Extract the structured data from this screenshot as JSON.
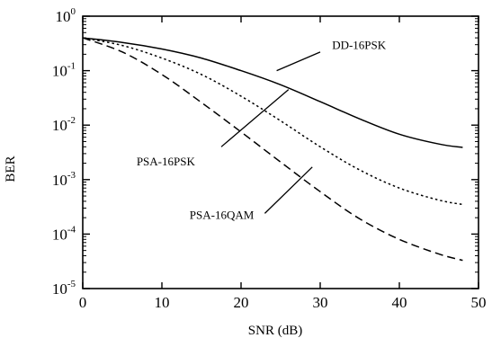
{
  "chart_data": {
    "type": "line",
    "title": "",
    "xlabel": "SNR (dB)",
    "ylabel": "BER",
    "xlim": [
      0,
      50
    ],
    "ylim": [
      1e-05,
      1
    ],
    "yscale": "log",
    "grid": false,
    "xticks": [
      0,
      10,
      20,
      30,
      40,
      50
    ],
    "xtick_labels": [
      "0",
      "10",
      "20",
      "30",
      "40",
      "50"
    ],
    "yticks": [
      1,
      0.1,
      0.01,
      0.001,
      0.0001,
      1e-05
    ],
    "ytick_labels": [
      {
        "base": "10",
        "exp": "0"
      },
      {
        "base": "10",
        "exp": "-1"
      },
      {
        "base": "10",
        "exp": "-2"
      },
      {
        "base": "10",
        "exp": "-3"
      },
      {
        "base": "10",
        "exp": "-4"
      },
      {
        "base": "10",
        "exp": "-5"
      }
    ],
    "series": [
      {
        "name": "DD-16PSK",
        "style": "solid",
        "x": [
          0,
          5,
          10,
          15,
          20,
          25,
          30,
          35,
          40,
          45,
          48
        ],
        "y": [
          0.4,
          0.33,
          0.25,
          0.17,
          0.1,
          0.055,
          0.027,
          0.013,
          0.0068,
          0.0045,
          0.0039
        ]
      },
      {
        "name": "PSA-16PSK",
        "style": "dotted",
        "x": [
          0,
          5,
          10,
          15,
          20,
          25,
          30,
          35,
          40,
          45,
          48
        ],
        "y": [
          0.4,
          0.29,
          0.17,
          0.085,
          0.034,
          0.012,
          0.004,
          0.0015,
          0.0007,
          0.00042,
          0.00035
        ]
      },
      {
        "name": "PSA-16QAM",
        "style": "dashed",
        "x": [
          0,
          5,
          10,
          15,
          20,
          25,
          30,
          35,
          40,
          45,
          48
        ],
        "y": [
          0.4,
          0.22,
          0.085,
          0.026,
          0.0075,
          0.0021,
          0.0006,
          0.00019,
          8e-05,
          4.3e-05,
          3.3e-05
        ]
      }
    ],
    "annotations": [
      {
        "text": "DD-16PSK",
        "series": "DD-16PSK",
        "label_x": 31.5,
        "label_y": 0.3,
        "pointer_from": [
          24.5,
          0.1
        ],
        "pointer_to": [
          30,
          0.22
        ]
      },
      {
        "text": "PSA-16PSK",
        "series": "PSA-16PSK",
        "label_x": 6.8,
        "label_y": 0.0022,
        "pointer_from": [
          17.5,
          0.004
        ],
        "pointer_to": [
          26,
          0.045
        ]
      },
      {
        "text": "PSA-16QAM",
        "series": "PSA-16QAM",
        "label_x": 13.5,
        "label_y": 0.00023,
        "pointer_from": [
          23,
          0.00024
        ],
        "pointer_to": [
          29,
          0.0017
        ]
      }
    ]
  }
}
